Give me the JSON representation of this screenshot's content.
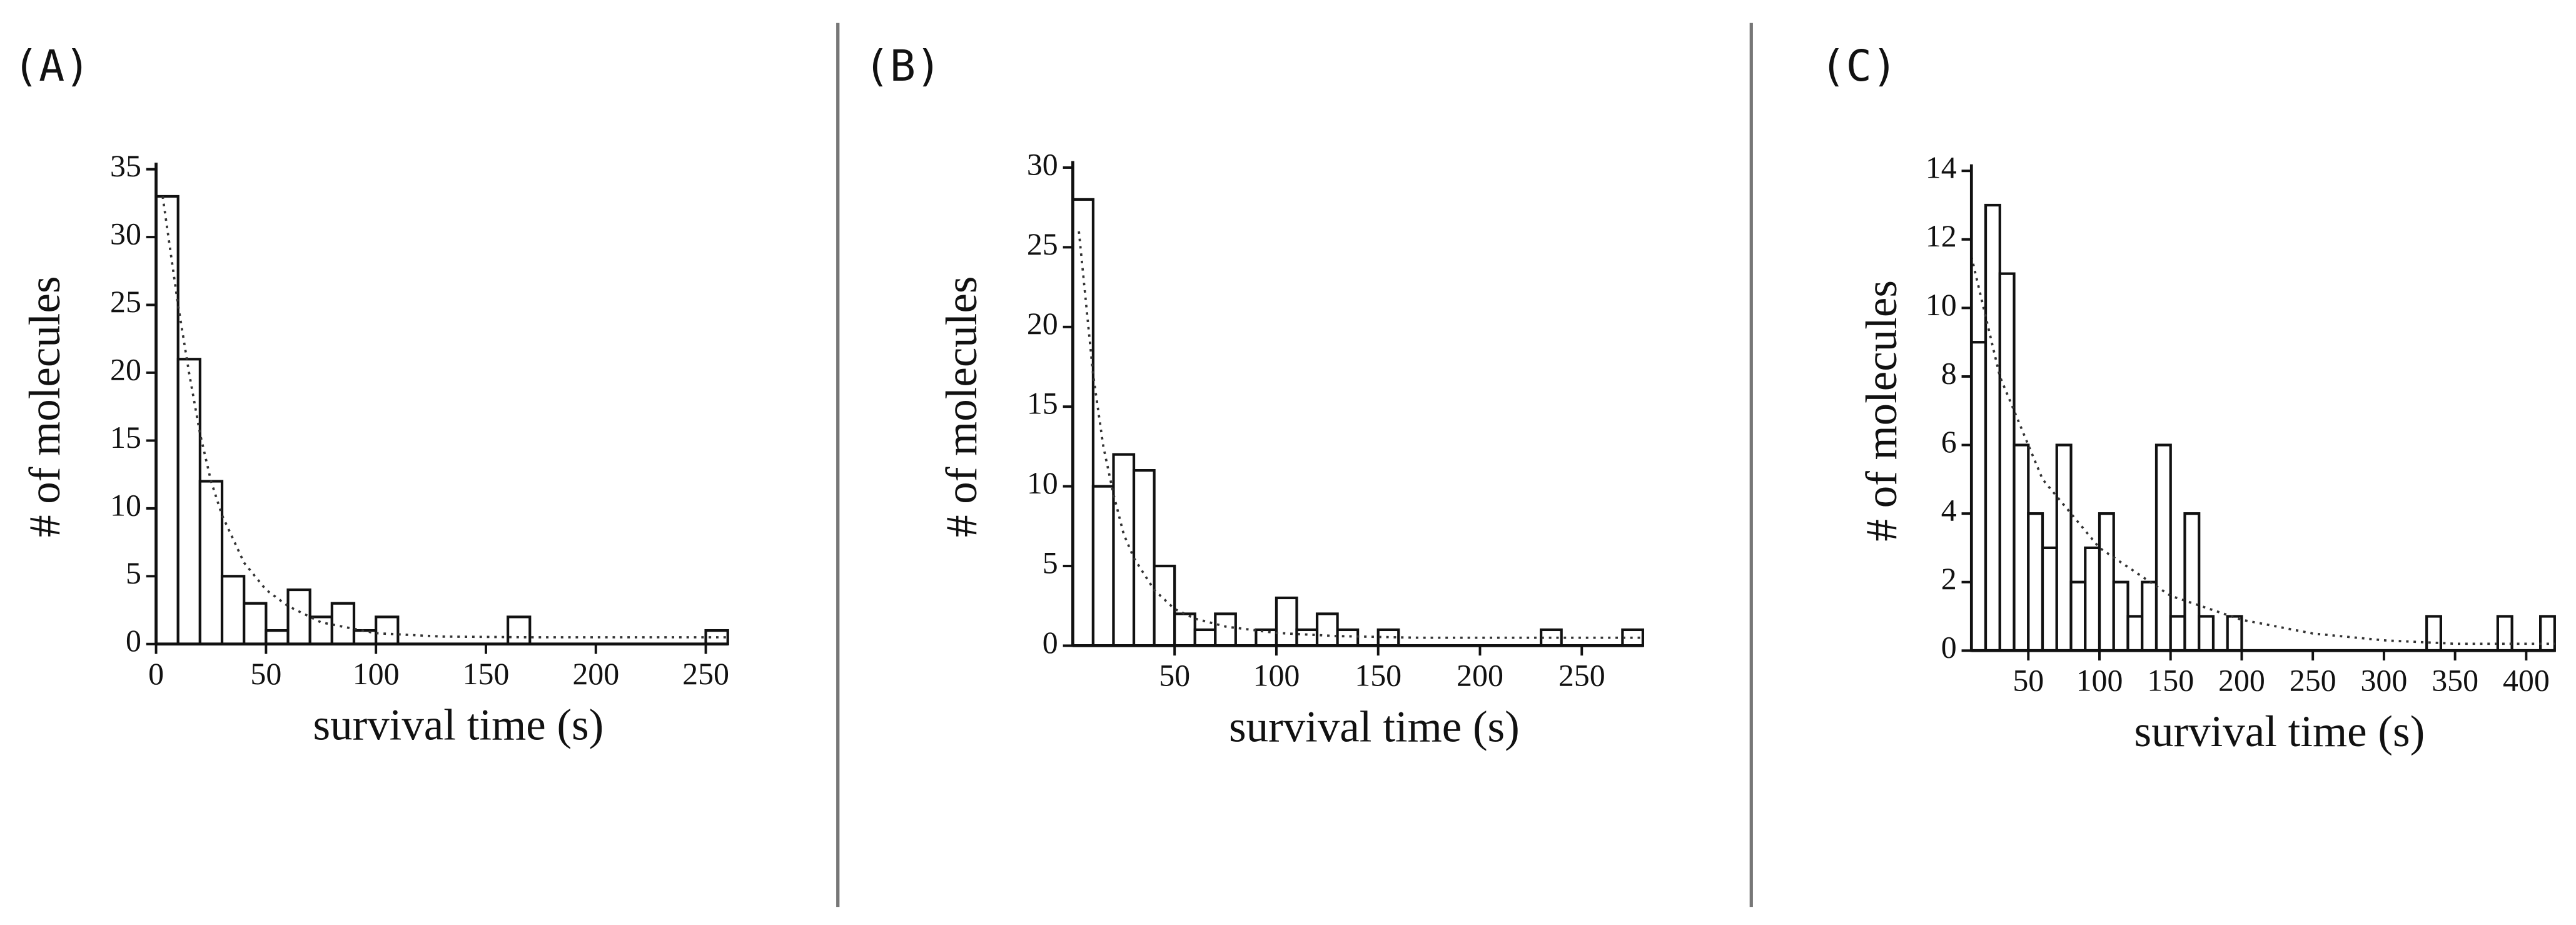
{
  "chart_data": [
    {
      "type": "histogram",
      "panel": "(A)",
      "xlabel": "survival time (s)",
      "ylabel": "# of molecules",
      "bins": [
        0,
        10,
        20,
        30,
        40,
        50,
        60,
        70,
        80,
        90,
        100,
        110,
        120,
        130,
        140,
        150,
        160,
        170,
        180,
        190,
        200,
        210,
        220,
        230,
        240,
        250,
        260
      ],
      "values": [
        33,
        21,
        12,
        5,
        3,
        1,
        4,
        2,
        3,
        1,
        2,
        0,
        0,
        0,
        0,
        0,
        2,
        0,
        0,
        0,
        0,
        0,
        0,
        0,
        0,
        1
      ],
      "fit": {
        "x": [
          3,
          10,
          15,
          20,
          25,
          30,
          40,
          50,
          60,
          75,
          100,
          130,
          170,
          260
        ],
        "y": [
          33,
          25,
          20,
          15.5,
          12,
          9.5,
          6,
          4,
          2.8,
          1.6,
          0.8,
          0.55,
          0.5,
          0.5
        ]
      },
      "xlim": [
        0,
        260
      ],
      "ylim": [
        0,
        35
      ],
      "xticks": [
        0,
        50,
        100,
        150,
        200,
        250
      ],
      "yticks": [
        0,
        5,
        10,
        15,
        20,
        25,
        30,
        35
      ]
    },
    {
      "type": "histogram",
      "panel": "(B)",
      "xlabel": "survival time (s)",
      "ylabel": "# of molecules",
      "bins": [
        0,
        10,
        20,
        30,
        40,
        50,
        60,
        70,
        80,
        90,
        100,
        110,
        120,
        130,
        140,
        150,
        160,
        170,
        180,
        190,
        200,
        210,
        220,
        230,
        240,
        250,
        260,
        270,
        280
      ],
      "values": [
        28,
        10,
        12,
        11,
        5,
        2,
        1,
        2,
        0,
        1,
        3,
        1,
        2,
        1,
        0,
        1,
        0,
        0,
        0,
        0,
        0,
        0,
        0,
        1,
        0,
        0,
        0,
        1
      ],
      "fit": {
        "x": [
          3,
          10,
          15,
          20,
          25,
          30,
          40,
          50,
          60,
          75,
          100,
          130,
          170,
          280
        ],
        "y": [
          26,
          17,
          12.5,
          9.5,
          7,
          5.5,
          3.5,
          2.3,
          1.7,
          1.2,
          0.8,
          0.6,
          0.5,
          0.5
        ]
      },
      "xlim": [
        0,
        280
      ],
      "ylim": [
        0,
        30
      ],
      "xticks": [
        50,
        100,
        150,
        200,
        250
      ],
      "yticks": [
        0,
        5,
        10,
        15,
        20,
        25,
        30
      ]
    },
    {
      "type": "histogram",
      "panel": "(C)",
      "xlabel": "survival time (s)",
      "ylabel": "# of molecules",
      "bins": [
        10,
        20,
        30,
        40,
        50,
        60,
        70,
        80,
        90,
        100,
        110,
        120,
        130,
        140,
        150,
        160,
        170,
        180,
        190,
        200,
        210,
        220,
        230,
        240,
        250,
        260,
        270,
        280,
        290,
        300,
        310,
        320,
        330,
        340,
        350,
        360,
        370,
        380,
        390,
        400,
        410,
        420
      ],
      "values": [
        9,
        13,
        11,
        6,
        4,
        3,
        6,
        2,
        3,
        4,
        2,
        1,
        2,
        6,
        1,
        4,
        1,
        0,
        1,
        0,
        0,
        0,
        0,
        0,
        0,
        0,
        0,
        0,
        0,
        0,
        0,
        0,
        1,
        0,
        0,
        0,
        0,
        1,
        0,
        0,
        1
      ],
      "fit": {
        "x": [
          10,
          30,
          60,
          100,
          150,
          200,
          250,
          300,
          350,
          420
        ],
        "y": [
          11.5,
          8,
          5,
          3,
          1.6,
          0.9,
          0.5,
          0.3,
          0.2,
          0.2
        ]
      },
      "xlim": [
        10,
        420
      ],
      "ylim": [
        0,
        14
      ],
      "xticks": [
        50,
        100,
        150,
        200,
        250,
        300,
        350,
        400
      ],
      "yticks": [
        0,
        2,
        4,
        6,
        8,
        10,
        12,
        14
      ]
    }
  ]
}
